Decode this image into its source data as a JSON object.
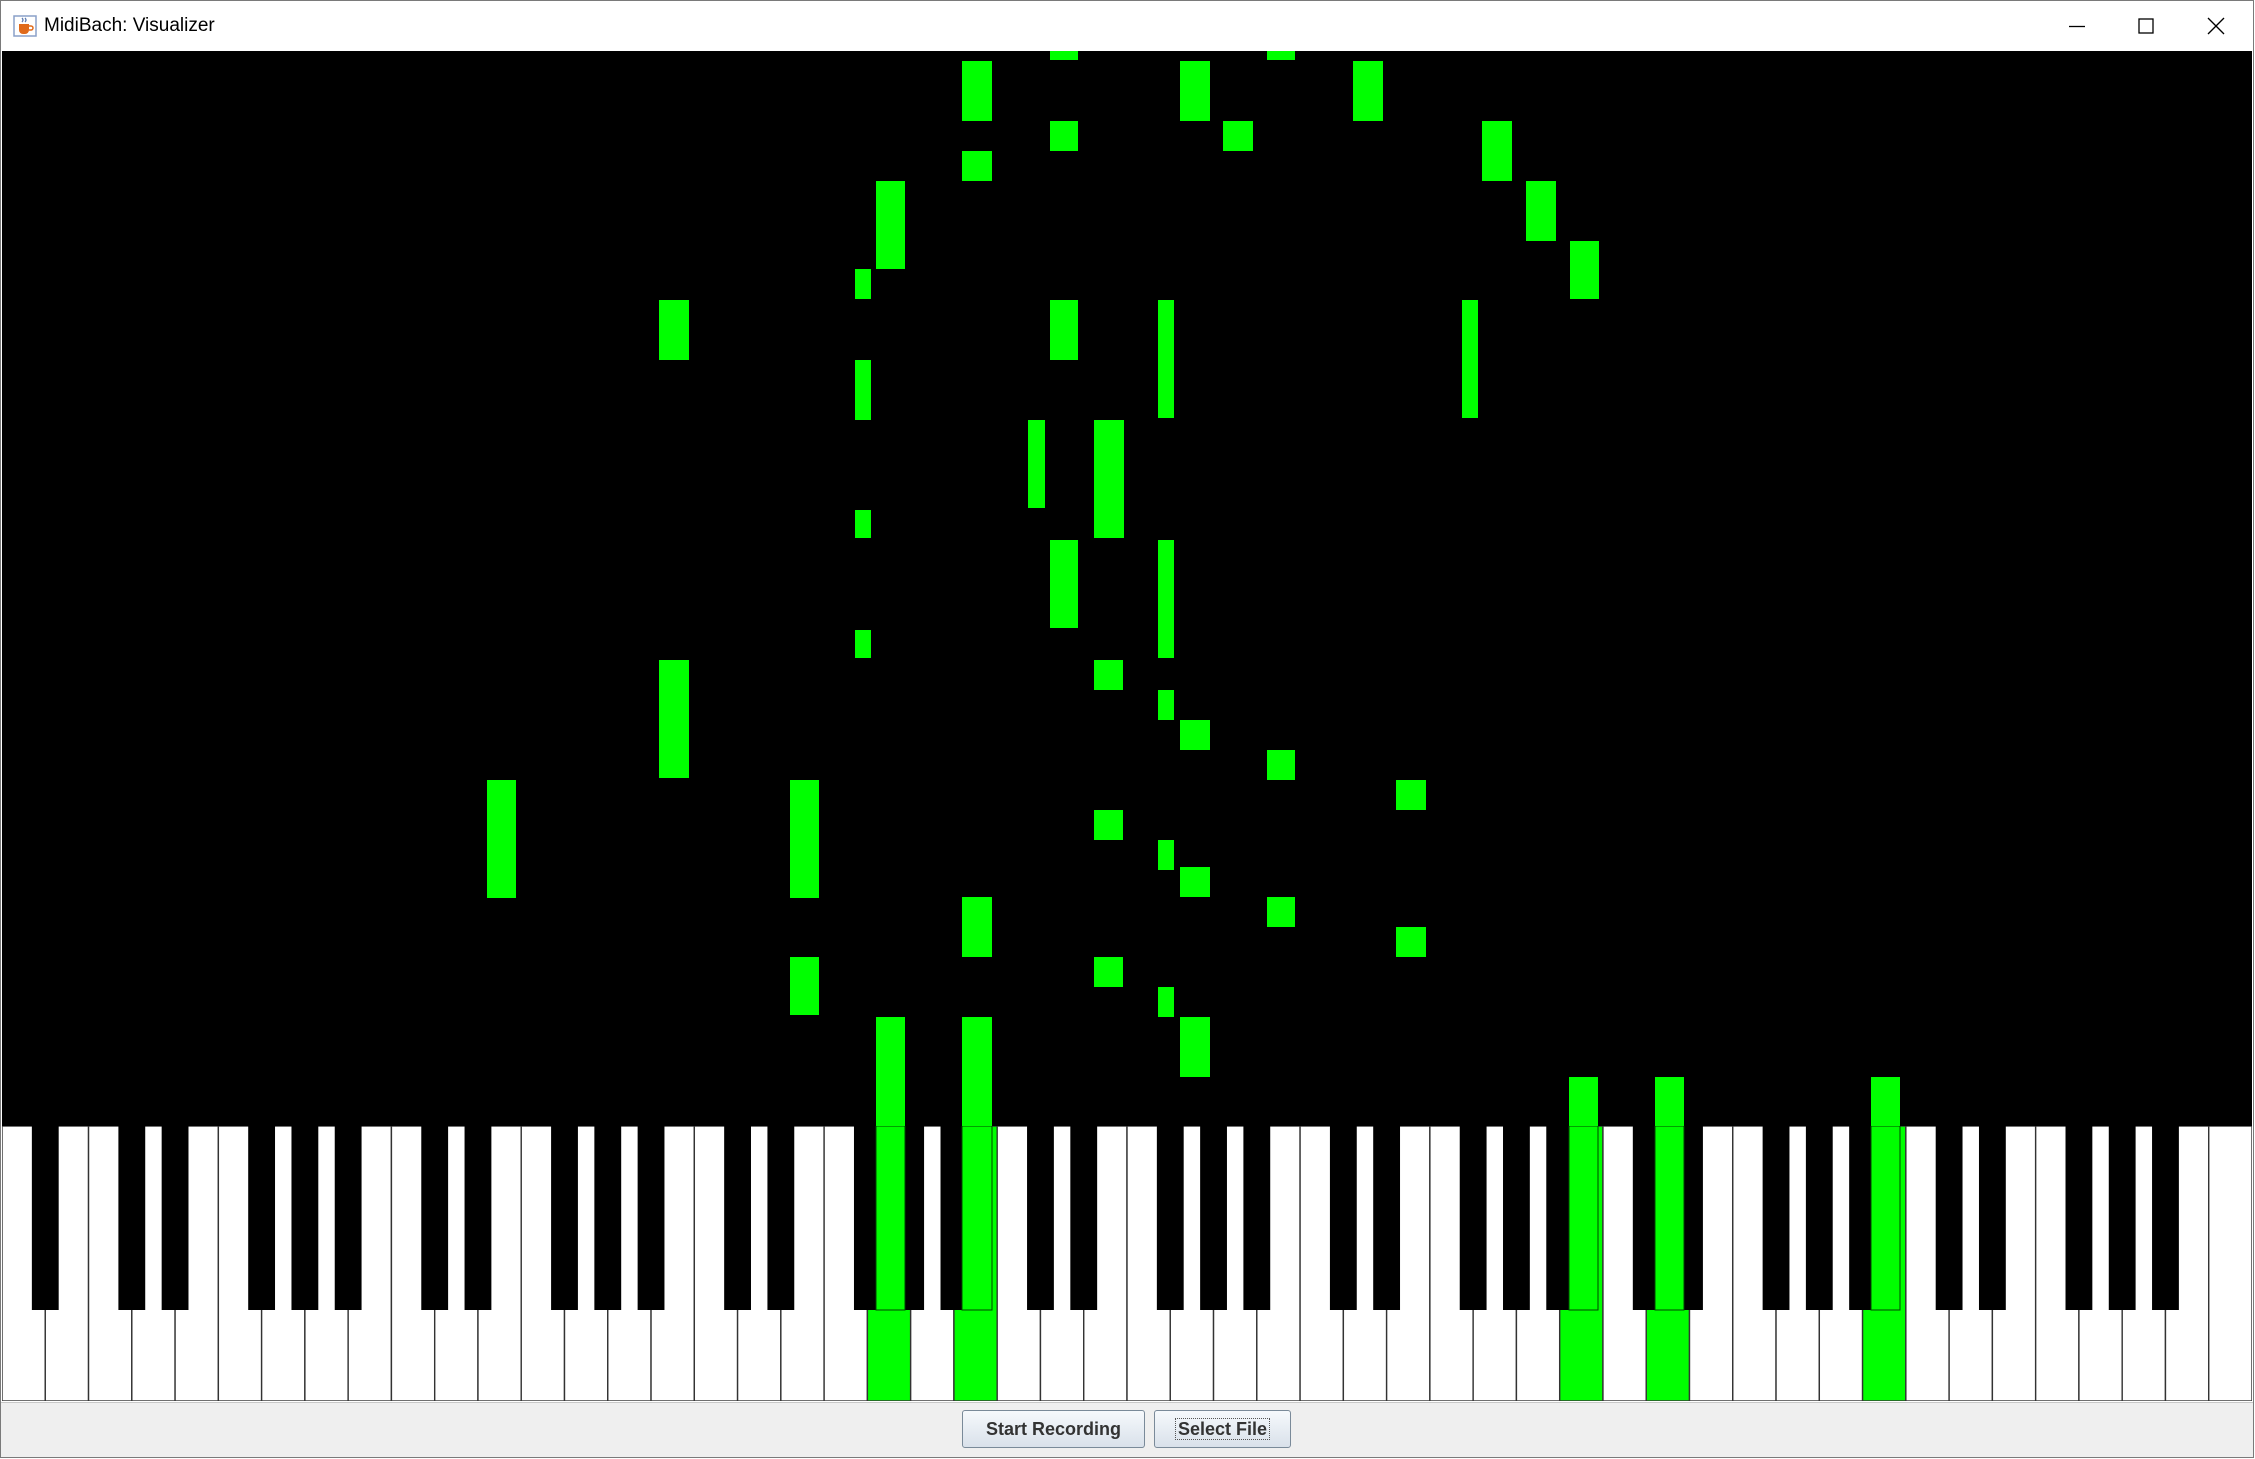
{
  "window": {
    "title": "MidiBach: Visualizer",
    "icons": {
      "app": "java-cup-icon",
      "minimize": "minimize-icon",
      "maximize": "maximize-icon",
      "close": "close-icon"
    }
  },
  "visualizer": {
    "background": "#000000",
    "note_color": "#00ff00",
    "white_key_color": "#ffffff",
    "black_key_color": "#000000",
    "key_divider_color": "#333333"
  },
  "controls": {
    "start_recording_label": "Start Recording",
    "select_file_label": "Select File"
  }
}
